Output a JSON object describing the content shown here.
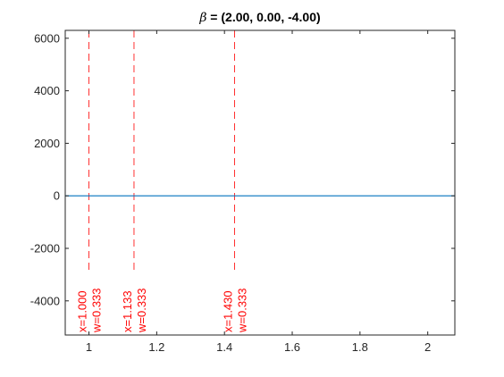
{
  "chart_data": {
    "type": "line",
    "title_prefix": "β",
    "title": " = (2.00, 0.00, -4.00)",
    "xlabel": "",
    "ylabel": "",
    "xlim": [
      0.93,
      2.08
    ],
    "ylim": [
      -5300,
      6300
    ],
    "xticks": [
      1,
      1.2,
      1.4,
      1.6,
      1.8,
      2
    ],
    "xtick_labels": [
      "1",
      "1.2",
      "1.4",
      "1.6",
      "1.8",
      "2"
    ],
    "yticks": [
      -4000,
      -2000,
      0,
      2000,
      4000,
      6000
    ],
    "ytick_labels": [
      "-4000",
      "-2000",
      "0",
      "2000",
      "4000",
      "6000"
    ],
    "grid": false,
    "series": [
      {
        "color": "#0072BD",
        "x": [
          0.93,
          1.0,
          1.133,
          1.43,
          1.7,
          2.08
        ],
        "y": [
          0,
          0,
          0,
          0,
          0,
          0
        ]
      }
    ],
    "markers": [
      {
        "x": 1.0,
        "x_label": "x=1.000",
        "w_label": "w=0.333"
      },
      {
        "x": 1.133,
        "x_label": "x=1.133",
        "w_label": "w=0.333"
      },
      {
        "x": 1.43,
        "x_label": "x=1.430",
        "w_label": "w=0.333"
      }
    ],
    "marker_color": "#FF0000",
    "axis_color": "#262626"
  }
}
